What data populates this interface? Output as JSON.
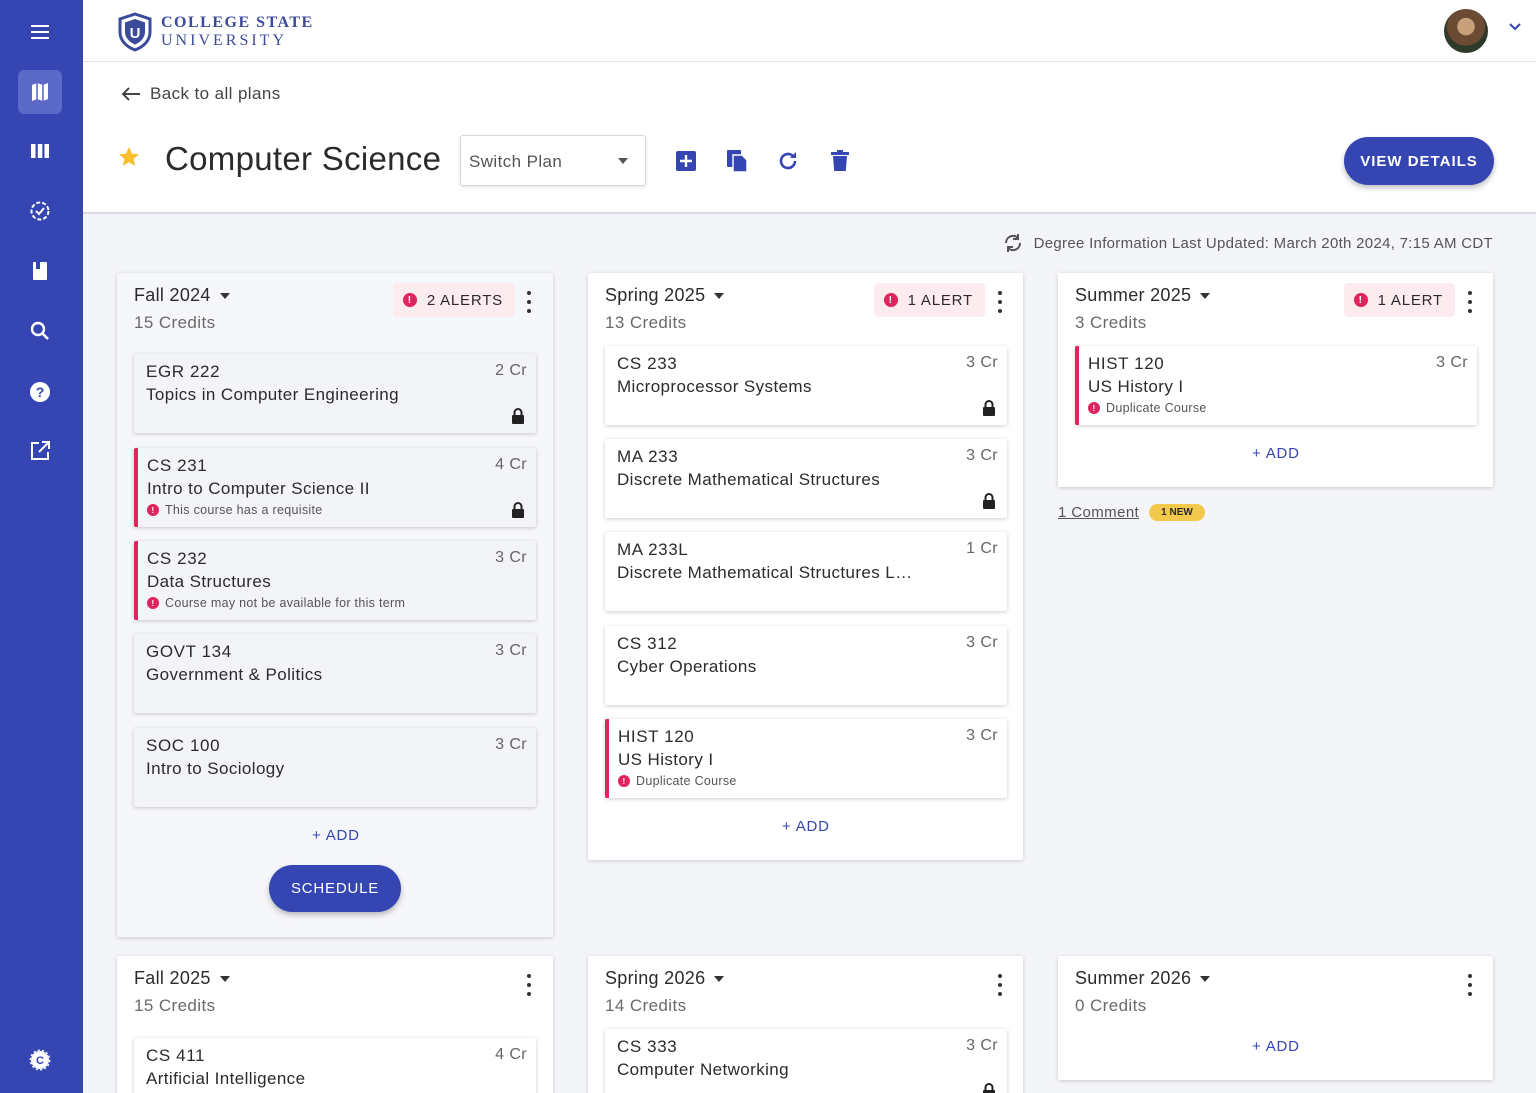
{
  "brand": {
    "line1": "COLLEGE STATE",
    "line2": "UNIVERSITY",
    "mark": "U",
    "accent": "#3546b3",
    "alert": "#e0245e"
  },
  "sidebar": {
    "items": [
      {
        "icon": "menu-icon"
      },
      {
        "icon": "map-icon",
        "active": true
      },
      {
        "icon": "columns-icon"
      },
      {
        "icon": "check-circle-icon"
      },
      {
        "icon": "book-icon"
      },
      {
        "icon": "search-icon"
      },
      {
        "icon": "help-icon"
      },
      {
        "icon": "external-link-icon"
      },
      {
        "icon": "settings-logo-icon"
      }
    ]
  },
  "header": {
    "back_label": "Back to all plans",
    "plan_title": "Computer Science",
    "switch_placeholder": "Switch Plan",
    "view_details": "VIEW DETAILS",
    "updated": "Degree Information Last Updated: March 20th 2024, 7:15 AM CDT"
  },
  "terms": {
    "fall2024": {
      "title": "Fall 2024",
      "credits": "15 Credits",
      "alerts": "2 ALERTS",
      "courses": [
        {
          "code": "EGR 222",
          "name": "Topics in Computer Engineering",
          "cr": "2 Cr"
        },
        {
          "code": "CS 231",
          "name": "Intro to Computer Science II",
          "cr": "4 Cr",
          "note": "This course has a requisite"
        },
        {
          "code": "CS 232",
          "name": "Data Structures",
          "cr": "3 Cr",
          "note": "Course may not be available for this term"
        },
        {
          "code": "GOVT 134",
          "name": "Government & Politics",
          "cr": "3 Cr"
        },
        {
          "code": "SOC 100",
          "name": "Intro to Sociology",
          "cr": "3 Cr"
        }
      ],
      "add": "+ ADD",
      "schedule": "SCHEDULE"
    },
    "spring2025": {
      "title": "Spring 2025",
      "credits": "13 Credits",
      "alerts": "1 ALERT",
      "courses": [
        {
          "code": "CS 233",
          "name": "Microprocessor Systems",
          "cr": "3 Cr"
        },
        {
          "code": "MA 233",
          "name": "Discrete Mathematical Structures",
          "cr": "3 Cr"
        },
        {
          "code": "MA 233L",
          "name": "Discrete Mathematical Structures L…",
          "cr": "1 Cr"
        },
        {
          "code": "CS 312",
          "name": "Cyber Operations",
          "cr": "3 Cr"
        },
        {
          "code": "HIST 120",
          "name": "US History I",
          "cr": "3 Cr",
          "note": "Duplicate Course"
        }
      ],
      "add": "+ ADD"
    },
    "summer2025": {
      "title": "Summer 2025",
      "credits": "3 Credits",
      "alerts": "1 ALERT",
      "courses": [
        {
          "code": "HIST 120",
          "name": "US History I",
          "cr": "3 Cr",
          "note": "Duplicate Course"
        }
      ],
      "add": "+ ADD",
      "comment": "1 Comment",
      "new": "1 NEW"
    },
    "fall2025": {
      "title": "Fall 2025",
      "credits": "15 Credits",
      "courses": [
        {
          "code": "CS 411",
          "name": "Artificial Intelligence",
          "cr": "4 Cr"
        }
      ]
    },
    "spring2026": {
      "title": "Spring 2026",
      "credits": "14 Credits",
      "courses": [
        {
          "code": "CS 333",
          "name": "Computer Networking",
          "cr": "3 Cr"
        }
      ]
    },
    "summer2026": {
      "title": "Summer 2026",
      "credits": "0 Credits",
      "add": "+ ADD"
    }
  }
}
